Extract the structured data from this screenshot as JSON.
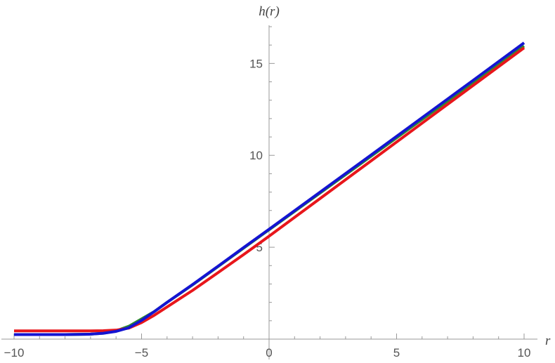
{
  "chart_data": {
    "type": "line",
    "title": "",
    "xlabel": "r",
    "ylabel": "h(r)",
    "xlim": [
      -10,
      10
    ],
    "ylim": [
      0,
      17
    ],
    "grid": false,
    "x_ticks": [
      {
        "value": -10,
        "label": "−10"
      },
      {
        "value": -5,
        "label": "−5"
      },
      {
        "value": 0,
        "label": "0"
      },
      {
        "value": 5,
        "label": "5"
      },
      {
        "value": 10,
        "label": "10"
      }
    ],
    "y_ticks": [
      {
        "value": 5,
        "label": "5"
      },
      {
        "value": 10,
        "label": "10"
      },
      {
        "value": 15,
        "label": "15"
      }
    ],
    "series": [
      {
        "color": "#2e8b2e",
        "x": [
          -10,
          -8,
          -7,
          -6.5,
          -6,
          -5.5,
          -5,
          -4.5,
          -4,
          -3,
          -2,
          -1,
          0,
          2,
          4,
          6,
          8,
          10
        ],
        "y": [
          0.25,
          0.25,
          0.27,
          0.32,
          0.45,
          0.7,
          1.1,
          1.5,
          2.0,
          2.95,
          3.95,
          4.95,
          5.95,
          7.95,
          9.95,
          11.95,
          13.95,
          15.95
        ]
      },
      {
        "color": "#e8161b",
        "x": [
          -10,
          -8,
          -7,
          -6.5,
          -6,
          -5.5,
          -5,
          -4.5,
          -4,
          -3,
          -2,
          -1,
          0,
          2,
          4,
          6,
          8,
          10
        ],
        "y": [
          0.45,
          0.45,
          0.45,
          0.46,
          0.49,
          0.6,
          0.9,
          1.3,
          1.75,
          2.65,
          3.62,
          4.6,
          5.6,
          7.65,
          9.7,
          11.75,
          13.8,
          15.85
        ]
      },
      {
        "color": "#1414d2",
        "x": [
          -10,
          -8,
          -7,
          -6.5,
          -6,
          -5.5,
          -5,
          -4.5,
          -4,
          -3,
          -2,
          -1,
          0,
          2,
          4,
          6,
          8,
          10
        ],
        "y": [
          0.25,
          0.25,
          0.27,
          0.32,
          0.42,
          0.62,
          1.02,
          1.5,
          2.0,
          2.97,
          3.97,
          4.98,
          5.98,
          8.0,
          10.02,
          12.05,
          14.08,
          16.12
        ]
      }
    ]
  }
}
